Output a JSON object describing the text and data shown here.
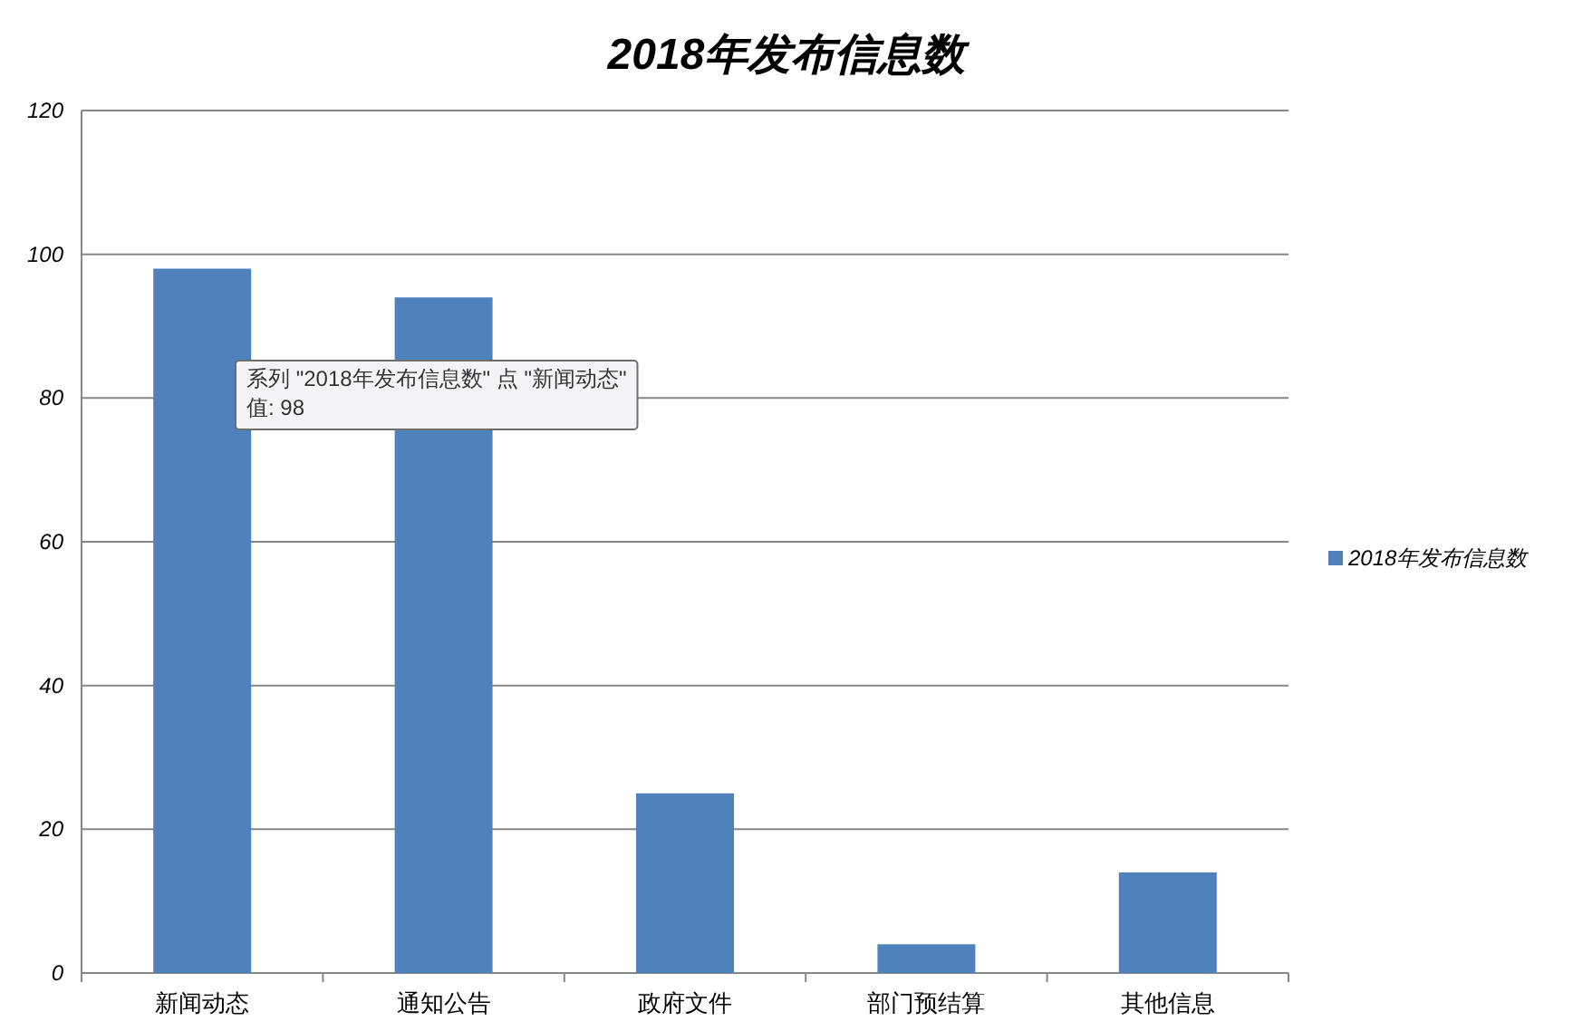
{
  "chart_data": {
    "type": "bar",
    "title": "2018年发布信息数",
    "categories": [
      "新闻动态",
      "通知公告",
      "政府文件",
      "部门预结算",
      "其他信息"
    ],
    "series": [
      {
        "name": "2018年发布信息数",
        "color": "#4f81bd",
        "values": [
          98,
          94,
          25,
          4,
          14
        ]
      }
    ],
    "ylim": [
      0,
      120
    ],
    "yticks": [
      0,
      20,
      40,
      60,
      80,
      100,
      120
    ],
    "grid": "y",
    "legend": "right",
    "annotations": [
      "系列 \"2018年发布信息数\" 点 \"新闻动态\"",
      "值: 98"
    ]
  }
}
